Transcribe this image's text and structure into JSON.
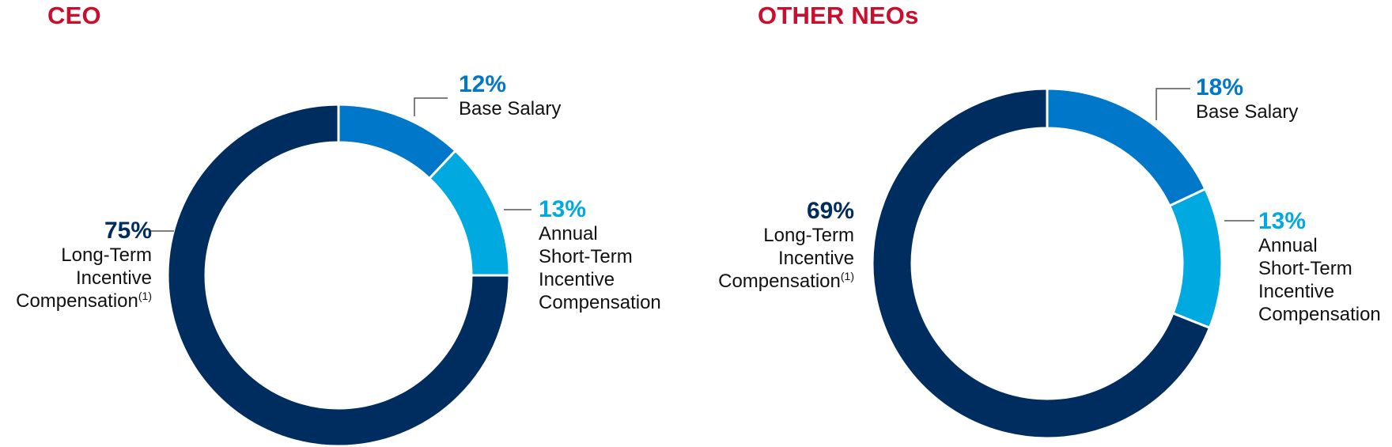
{
  "chart_data": [
    {
      "type": "pie",
      "title": "CEO",
      "categories": [
        "Base Salary",
        "Annual Short-Term Incentive Compensation",
        "Long-Term Incentive Compensation"
      ],
      "values": [
        12,
        13,
        75
      ],
      "labels": [
        {
          "pct": "12%",
          "lines": [
            "Base Salary"
          ],
          "sup": ""
        },
        {
          "pct": "13%",
          "lines": [
            "Annual",
            "Short-Term",
            "Incentive",
            "Compensation"
          ],
          "sup": ""
        },
        {
          "pct": "75%",
          "lines": [
            "Long-Term",
            "Incentive",
            "Compensation"
          ],
          "sup": "(1)"
        }
      ],
      "colors": [
        "#0077c8",
        "#00a9e0",
        "#002d5f"
      ]
    },
    {
      "type": "pie",
      "title": "OTHER NEOs",
      "categories": [
        "Base Salary",
        "Annual Short-Term Incentive Compensation",
        "Long-Term Incentive Compensation"
      ],
      "values": [
        18,
        13,
        69
      ],
      "labels": [
        {
          "pct": "18%",
          "lines": [
            "Base Salary"
          ],
          "sup": ""
        },
        {
          "pct": "13%",
          "lines": [
            "Annual",
            "Short-Term",
            "Incentive",
            "Compensation"
          ],
          "sup": ""
        },
        {
          "pct": "69%",
          "lines": [
            "Long-Term",
            "Incentive",
            "Compensation"
          ],
          "sup": "(1)"
        }
      ],
      "colors": [
        "#0077c8",
        "#00a9e0",
        "#002d5f"
      ]
    }
  ]
}
